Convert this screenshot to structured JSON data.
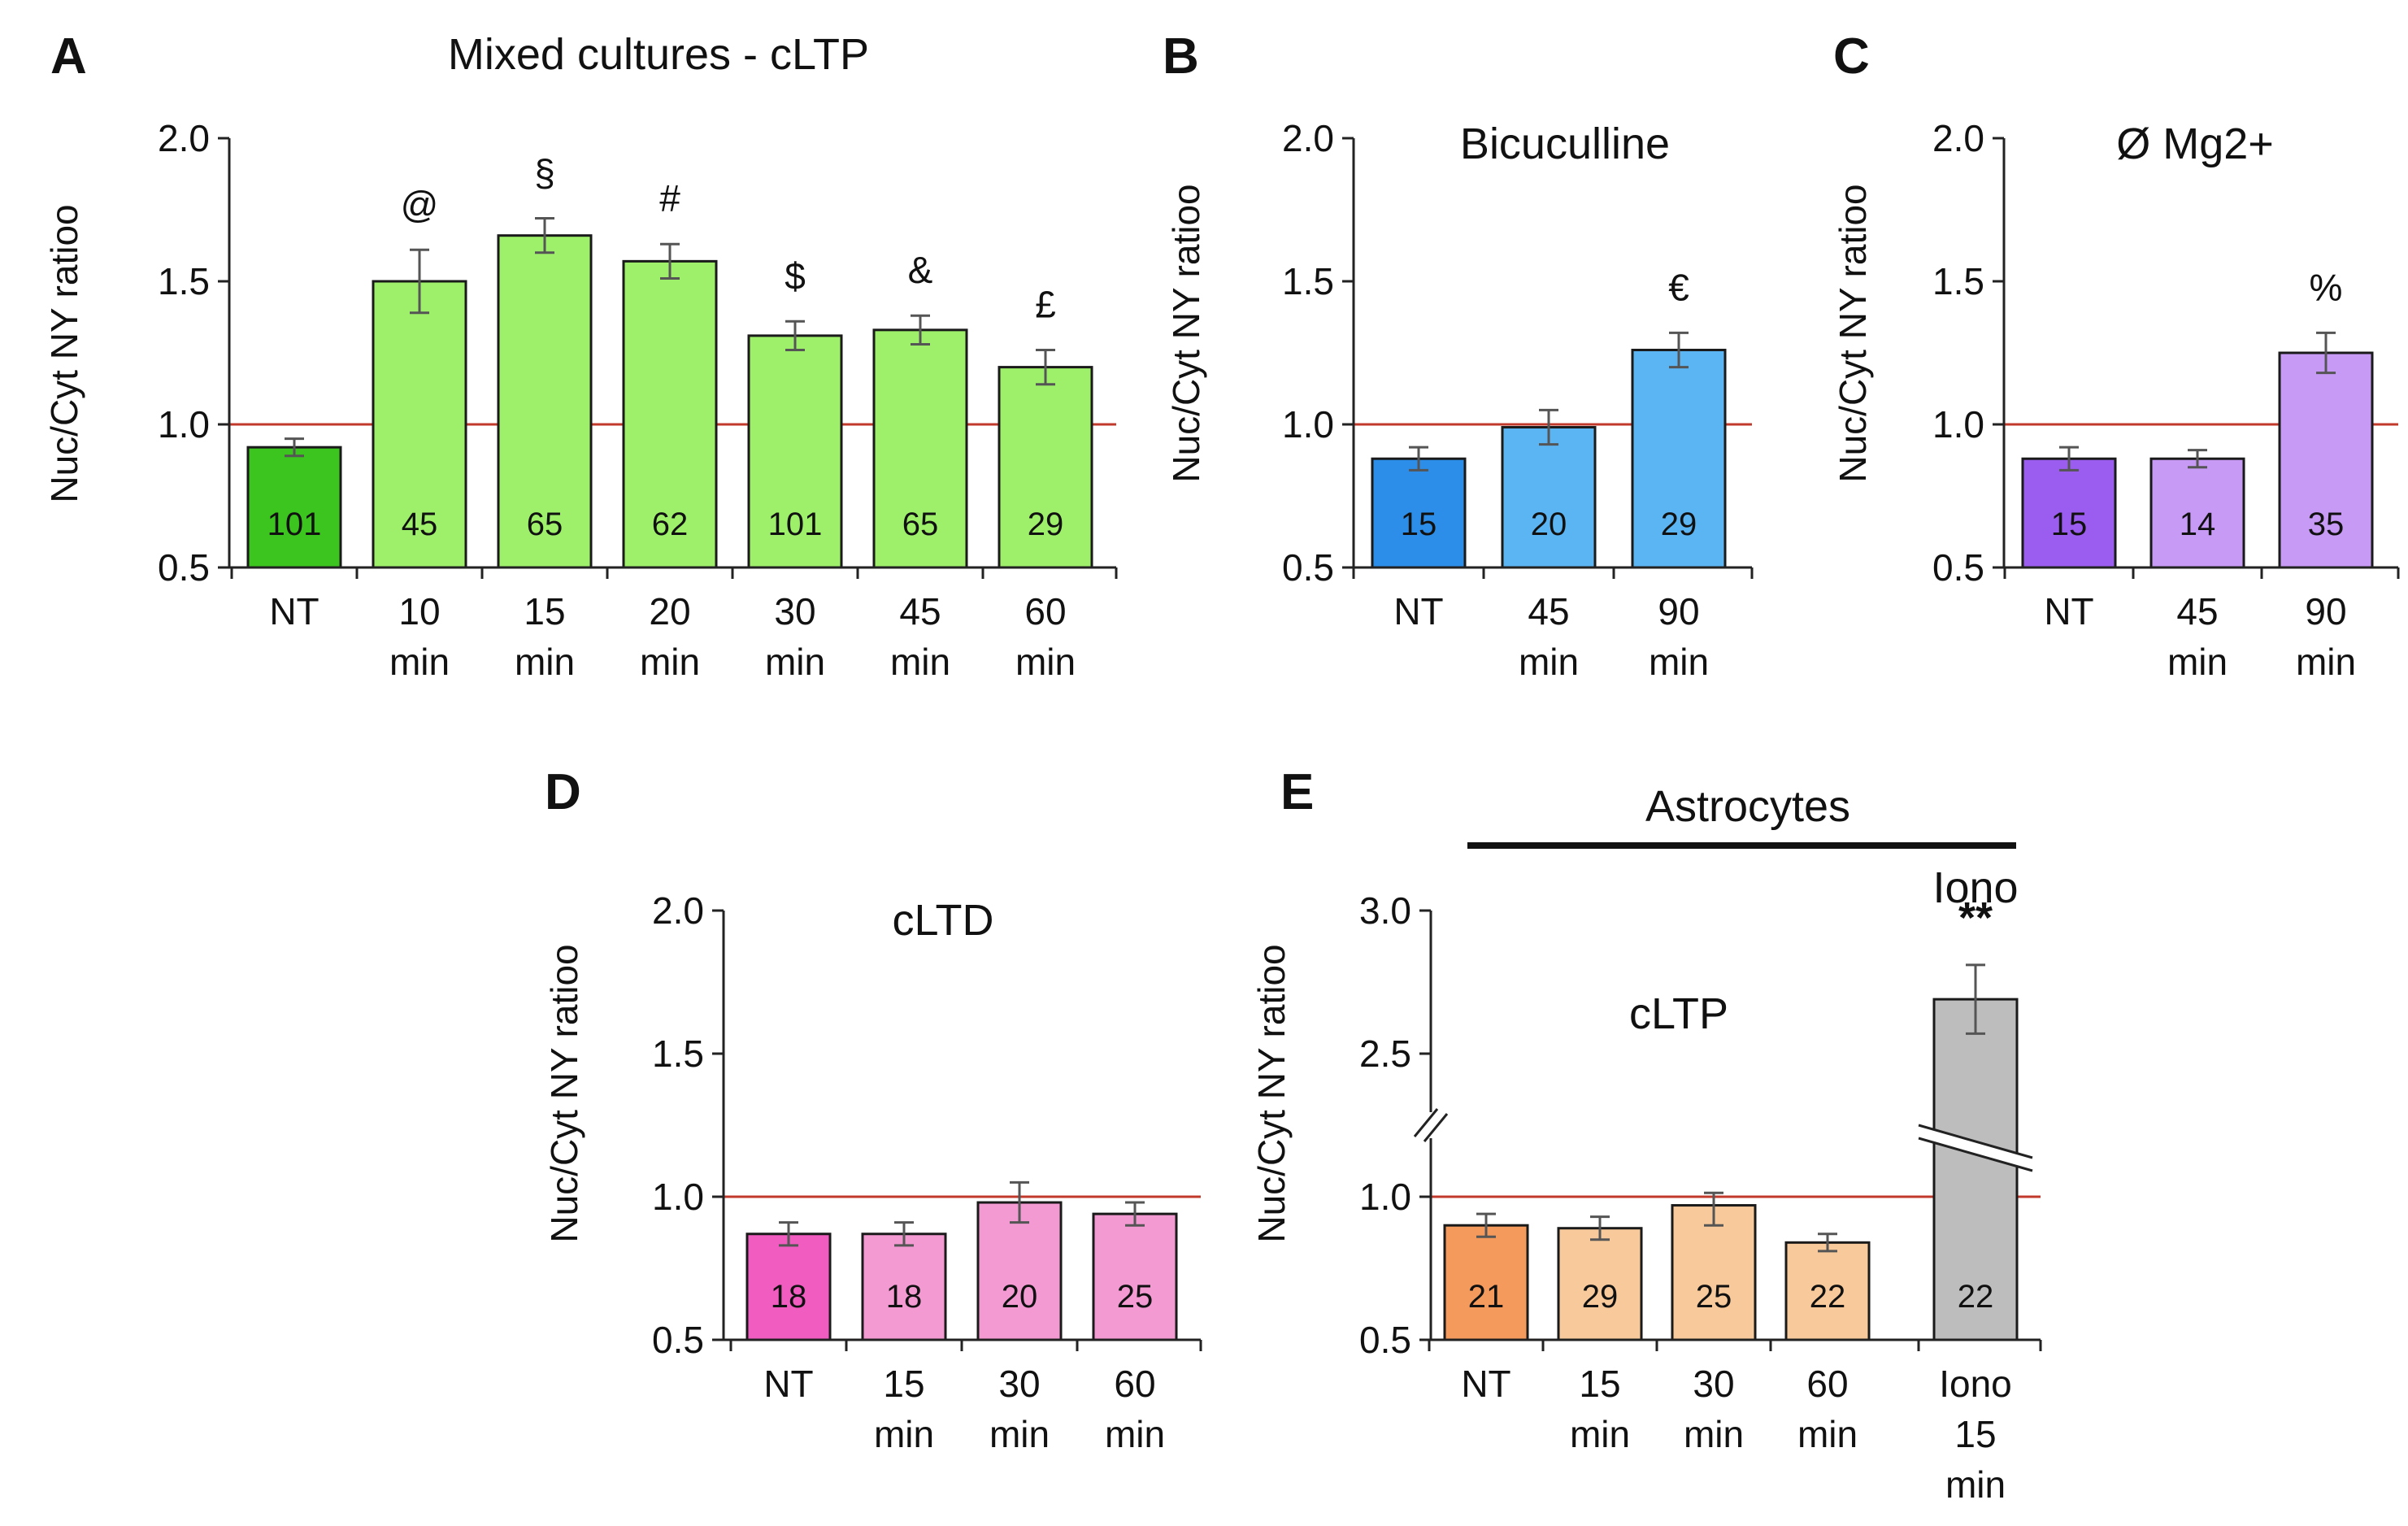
{
  "colors": {
    "axis": "#222222",
    "reference_line": "#c0392b",
    "error_bar": "#555555"
  },
  "chart_data": [
    {
      "id": "A",
      "type": "bar",
      "panel": "A",
      "title": "Mixed cultures - cLTP",
      "ylabel": "Nuc/Cyt NY ratioo",
      "ylim": [
        0.5,
        2.0
      ],
      "yticks": [
        "0.5",
        "1.0",
        "1.5",
        "2.0"
      ],
      "reference_line": 1.0,
      "categories": [
        [
          "NT"
        ],
        [
          "10",
          "min"
        ],
        [
          "15",
          "min"
        ],
        [
          "20",
          "min"
        ],
        [
          "30",
          "min"
        ],
        [
          "45",
          "min"
        ],
        [
          "60",
          "min"
        ]
      ],
      "values": [
        0.92,
        1.5,
        1.66,
        1.57,
        1.31,
        1.33,
        1.2
      ],
      "errors": [
        0.03,
        0.11,
        0.06,
        0.06,
        0.05,
        0.05,
        0.06
      ],
      "n": [
        "101",
        "45",
        "65",
        "62",
        "101",
        "65",
        "29"
      ],
      "annotations": [
        "",
        "@",
        "§",
        "#",
        "$",
        "&",
        "£"
      ],
      "colors": [
        "#3cc41f",
        "#9ef06a",
        "#9ef06a",
        "#9ef06a",
        "#9ef06a",
        "#9ef06a",
        "#9ef06a"
      ]
    },
    {
      "id": "B",
      "type": "bar",
      "panel": "B",
      "title": "Bicuculline",
      "ylabel": "Nuc/Cyt NY ratioo",
      "ylim": [
        0.5,
        2.0
      ],
      "yticks": [
        "0.5",
        "1.0",
        "1.5",
        "2.0"
      ],
      "reference_line": 1.0,
      "categories": [
        [
          "NT"
        ],
        [
          "45",
          "min"
        ],
        [
          "90",
          "min"
        ]
      ],
      "values": [
        0.88,
        0.99,
        1.26
      ],
      "errors": [
        0.04,
        0.06,
        0.06
      ],
      "n": [
        "15",
        "20",
        "29"
      ],
      "annotations": [
        "",
        "",
        "€"
      ],
      "colors": [
        "#2c8ee8",
        "#5bb5f3",
        "#5bb5f3"
      ]
    },
    {
      "id": "C",
      "type": "bar",
      "panel": "C",
      "title": "Ø Mg2+",
      "ylabel": "Nuc/Cyt NY ratioo",
      "ylim": [
        0.5,
        2.0
      ],
      "yticks": [
        "0.5",
        "1.0",
        "1.5",
        "2.0"
      ],
      "reference_line": 1.0,
      "categories": [
        [
          "NT"
        ],
        [
          "45",
          "min"
        ],
        [
          "90",
          "min"
        ]
      ],
      "values": [
        0.88,
        0.88,
        1.25
      ],
      "errors": [
        0.04,
        0.03,
        0.07
      ],
      "n": [
        "15",
        "14",
        "35"
      ],
      "annotations": [
        "",
        "",
        "%"
      ],
      "colors": [
        "#9b5cf0",
        "#c79af5",
        "#c79af5"
      ]
    },
    {
      "id": "D",
      "type": "bar",
      "panel": "D",
      "title": "cLTD",
      "ylabel": "Nuc/Cyt NY ratioo",
      "ylim": [
        0.5,
        2.0
      ],
      "yticks": [
        "0.5",
        "1.0",
        "1.5",
        "2.0"
      ],
      "reference_line": 1.0,
      "categories": [
        [
          "NT"
        ],
        [
          "15",
          "min"
        ],
        [
          "30",
          "min"
        ],
        [
          "60",
          "min"
        ]
      ],
      "values": [
        0.87,
        0.87,
        0.98,
        0.94
      ],
      "errors": [
        0.04,
        0.04,
        0.07,
        0.04
      ],
      "n": [
        "18",
        "18",
        "20",
        "25"
      ],
      "annotations": [
        "",
        "",
        "",
        ""
      ],
      "colors": [
        "#f05cc0",
        "#f49ad3",
        "#f49ad3",
        "#f49ad3"
      ]
    },
    {
      "id": "E",
      "type": "bar",
      "panel": "E",
      "title": "cLTP",
      "group_label": "Astrocytes",
      "ylabel": "Nuc/Cyt NY ratioo",
      "ylim": [
        0.5,
        3.0
      ],
      "axis_break": [
        1.0,
        2.5
      ],
      "yticks": [
        "0.5",
        "1.0",
        "2.5",
        "3.0"
      ],
      "reference_line": 1.0,
      "categories": [
        [
          "NT"
        ],
        [
          "15",
          "min"
        ],
        [
          "30",
          "min"
        ],
        [
          "60",
          "min"
        ],
        [
          "Iono",
          "15",
          "min"
        ]
      ],
      "values": [
        0.9,
        0.89,
        0.97,
        0.84,
        2.69
      ],
      "errors": [
        0.04,
        0.04,
        0.07,
        0.03,
        0.12
      ],
      "n": [
        "21",
        "29",
        "25",
        "22",
        "22"
      ],
      "annotations": [
        "",
        "",
        "",
        "",
        "**"
      ],
      "top_label": "Iono",
      "colors": [
        "#f39a5c",
        "#f8c99a",
        "#f8c99a",
        "#f8c99a",
        "#bdbdbd"
      ]
    }
  ]
}
